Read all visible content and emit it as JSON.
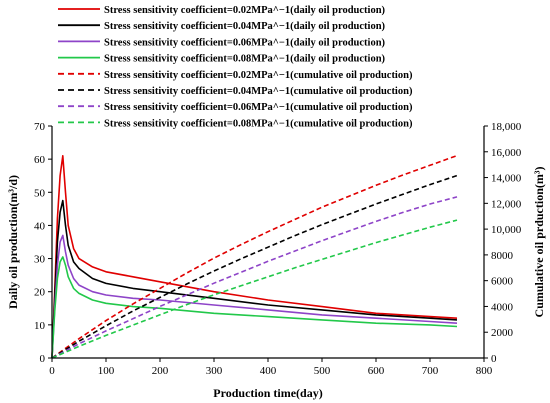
{
  "chart_data": {
    "type": "line",
    "xlabel": "Production time(day)",
    "ylabel_left": "Daily oil production(m³/d)",
    "ylabel_right": "Cumulative oil prduction(m³)",
    "xlim": [
      0,
      800
    ],
    "ylim_left": [
      0,
      70
    ],
    "ylim_right": [
      0,
      18000
    ],
    "x_ticks": [
      "0",
      "100",
      "200",
      "300",
      "400",
      "500",
      "600",
      "700",
      "800"
    ],
    "y_left_ticks": [
      "0",
      "10",
      "20",
      "30",
      "40",
      "50",
      "60",
      "70"
    ],
    "y_right_ticks": [
      "0",
      "2000",
      "4000",
      "6000",
      "8000",
      "10,000",
      "12,000",
      "14,000",
      "16,000",
      "18,000"
    ],
    "grid": false,
    "legend_position": "top",
    "series": [
      {
        "name": "Stress sensitivity coefficient=0.02MPa^−1(daily oil production)",
        "axis": "left",
        "style": "solid",
        "color": "#e00000",
        "x": [
          0,
          5,
          10,
          15,
          20,
          25,
          30,
          40,
          50,
          75,
          100,
          150,
          200,
          300,
          400,
          500,
          600,
          700,
          750
        ],
        "y": [
          0,
          20,
          42,
          55,
          61,
          50,
          40,
          33,
          30,
          27.5,
          26,
          24.5,
          23,
          20,
          17.5,
          15.5,
          13.5,
          12.5,
          12
        ]
      },
      {
        "name": "Stress sensitivity coefficient=0.04MPa^−1(daily oil production)",
        "axis": "left",
        "style": "solid",
        "color": "#000000",
        "x": [
          0,
          5,
          10,
          15,
          20,
          25,
          30,
          40,
          50,
          75,
          100,
          150,
          200,
          300,
          400,
          500,
          600,
          700,
          750
        ],
        "y": [
          0,
          18,
          35,
          44,
          47.5,
          40,
          34,
          29,
          27,
          24,
          22.5,
          21,
          20,
          18,
          16,
          14.5,
          13,
          12,
          11.5
        ]
      },
      {
        "name": "Stress sensitivity coefficient=0.06MPa^−1(daily oil production)",
        "axis": "left",
        "style": "solid",
        "color": "#8e44c8",
        "x": [
          0,
          5,
          10,
          15,
          20,
          25,
          30,
          40,
          50,
          75,
          100,
          150,
          200,
          300,
          400,
          500,
          600,
          700,
          750
        ],
        "y": [
          0,
          15,
          28,
          35,
          37,
          32,
          28,
          24,
          22,
          20,
          19,
          18,
          17.5,
          16,
          14.5,
          13,
          12,
          11,
          10.5
        ]
      },
      {
        "name": "Stress sensitivity coefficient=0.08MPa^−1(daily oil production)",
        "axis": "left",
        "style": "solid",
        "color": "#22c84a",
        "x": [
          0,
          5,
          10,
          15,
          20,
          25,
          30,
          40,
          50,
          75,
          100,
          150,
          200,
          300,
          400,
          500,
          600,
          700,
          750
        ],
        "y": [
          0,
          14,
          24,
          29,
          30.5,
          28,
          24.5,
          21,
          19.5,
          17.5,
          16.5,
          15.5,
          15,
          13.5,
          12.5,
          11.5,
          10.5,
          10,
          9.5
        ]
      },
      {
        "name": "Stress sensitivity coefficient=0.02MPa^−1(cumulative oil production)",
        "axis": "right",
        "style": "dashed",
        "color": "#e00000",
        "x": [
          0,
          50,
          100,
          150,
          200,
          250,
          300,
          350,
          400,
          450,
          500,
          550,
          600,
          650,
          700,
          750
        ],
        "y": [
          0,
          1500,
          2900,
          4200,
          5400,
          6600,
          7750,
          8800,
          9800,
          10750,
          11700,
          12550,
          13400,
          14200,
          14950,
          15700
        ]
      },
      {
        "name": "Stress sensitivity coefficient=0.04MPa^−1(cumulative oil production)",
        "axis": "right",
        "style": "dashed",
        "color": "#000000",
        "x": [
          0,
          50,
          100,
          150,
          200,
          250,
          300,
          350,
          400,
          450,
          500,
          550,
          600,
          650,
          700,
          750
        ],
        "y": [
          0,
          1300,
          2500,
          3650,
          4700,
          5750,
          6750,
          7700,
          8600,
          9500,
          10350,
          11150,
          11950,
          12700,
          13450,
          14150
        ]
      },
      {
        "name": "Stress sensitivity coefficient=0.06MPa^−1(cumulative oil production)",
        "axis": "right",
        "style": "dashed",
        "color": "#8e44c8",
        "x": [
          0,
          50,
          100,
          150,
          200,
          250,
          300,
          350,
          400,
          450,
          500,
          550,
          600,
          650,
          700,
          750
        ],
        "y": [
          0,
          1100,
          2100,
          3050,
          4000,
          4900,
          5800,
          6650,
          7500,
          8300,
          9100,
          9850,
          10600,
          11300,
          11950,
          12500
        ]
      },
      {
        "name": "Stress sensitivity coefficient=0.08MPa^−1(cumulative oil production)",
        "axis": "right",
        "style": "dashed",
        "color": "#22c84a",
        "x": [
          0,
          50,
          100,
          150,
          200,
          250,
          300,
          350,
          400,
          450,
          500,
          550,
          600,
          650,
          700,
          750
        ],
        "y": [
          0,
          900,
          1750,
          2550,
          3350,
          4150,
          4900,
          5600,
          6300,
          7000,
          7650,
          8300,
          8950,
          9550,
          10150,
          10700
        ]
      }
    ]
  }
}
